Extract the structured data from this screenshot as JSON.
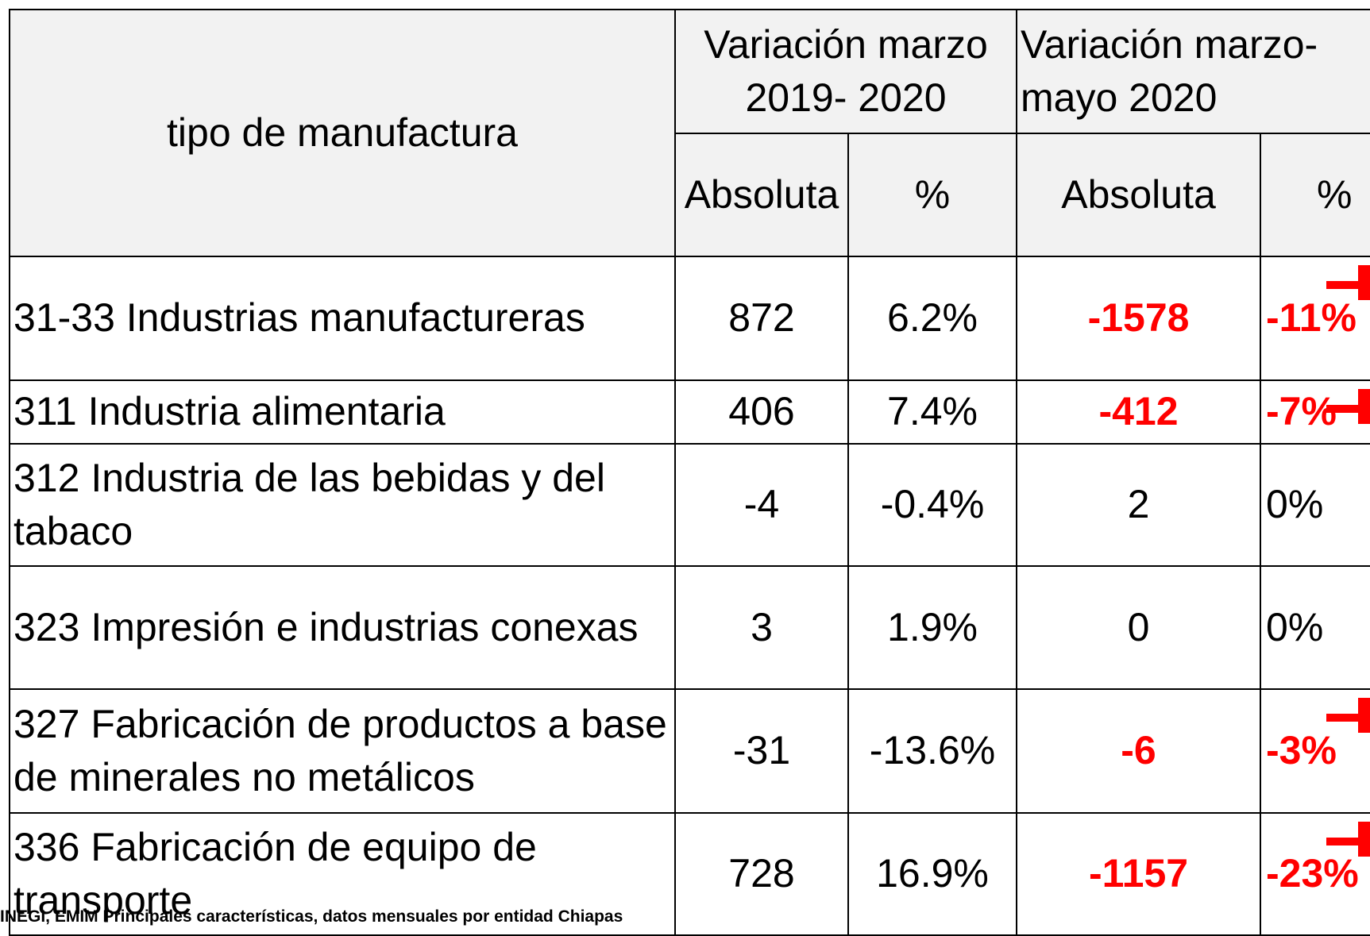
{
  "table": {
    "header": {
      "title": "tipo de manufactura",
      "group1": "Variación marzo 2019- 2020",
      "group2": "Variación marzo- mayo 2020",
      "sub": [
        "Absoluta",
        "%",
        "Absoluta",
        "%"
      ]
    },
    "rows": [
      [
        "31-33 Industrias manufactureras",
        "872",
        "6.2%",
        "-1578",
        "-11%"
      ],
      [
        "311 Industria alimentaria",
        "406",
        "7.4%",
        "-412",
        "-7%"
      ],
      [
        "312 Industria de las bebidas y del tabaco",
        "-4",
        "-0.4%",
        "2",
        "0%"
      ],
      [
        "323 Impresión e industrias conexas",
        "3",
        "1.9%",
        "0",
        "0%"
      ],
      [
        "327 Fabricación de productos a base de minerales no metálicos",
        "-31",
        "-13.6%",
        "-6",
        "-3%"
      ],
      [
        "336 Fabricación de equipo de transporte",
        "728",
        "16.9%",
        "-1157",
        "-23%"
      ]
    ]
  },
  "footer": "INEGI, EMIM Principales características, datos mensuales por entidad Chiapas"
}
